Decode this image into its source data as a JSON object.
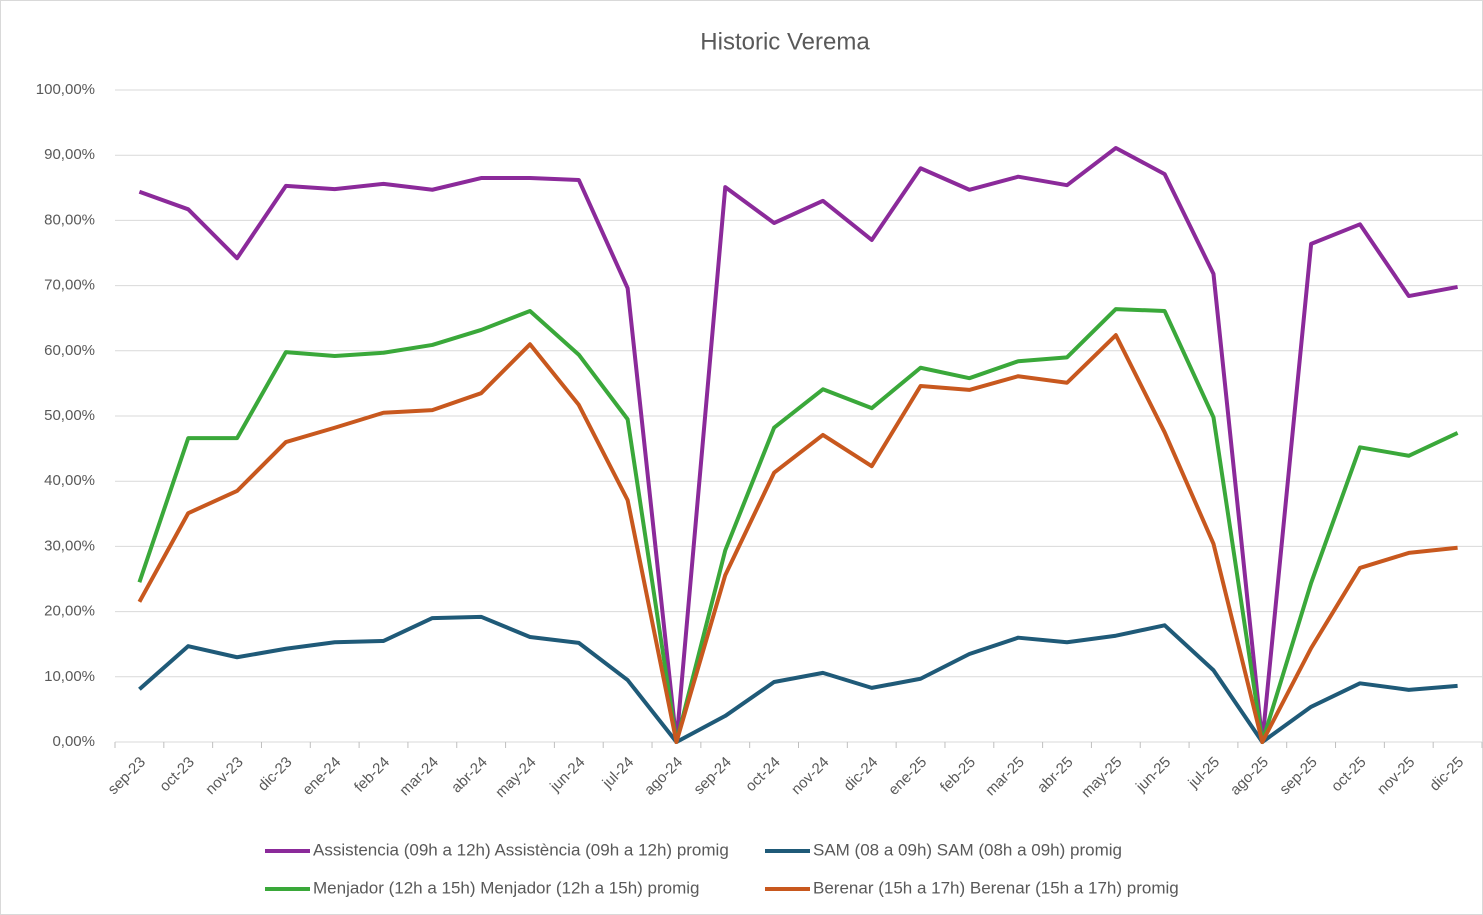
{
  "chart_data": {
    "type": "line",
    "title": "Historic Verema",
    "categories": [
      "sep-23",
      "oct-23",
      "nov-23",
      "dic-23",
      "ene-24",
      "feb-24",
      "mar-24",
      "abr-24",
      "may-24",
      "jun-24",
      "jul-24",
      "ago-24",
      "sep-24",
      "oct-24",
      "nov-24",
      "dic-24",
      "ene-25",
      "feb-25",
      "mar-25",
      "abr-25",
      "may-25",
      "jun-25",
      "jul-25",
      "ago-25",
      "sep-25",
      "oct-25",
      "nov-25",
      "dic-25"
    ],
    "series": [
      {
        "name": "Assistencia (09h a 12h) Assistència (09h a 12h) promig",
        "color": "#8b2a9a",
        "values": [
          84.4,
          81.7,
          74.2,
          85.3,
          84.8,
          85.6,
          84.7,
          86.5,
          86.5,
          86.2,
          69.6,
          0,
          85.1,
          79.6,
          83.0,
          77.0,
          88.0,
          84.7,
          86.7,
          85.4,
          91.1,
          87.1,
          71.8,
          0,
          76.4,
          79.4,
          68.4,
          69.8
        ]
      },
      {
        "name": "SAM (08 a 09h) SAM (08h a 09h) promig",
        "color": "#1f5a78",
        "values": [
          8.1,
          14.7,
          13.0,
          14.3,
          15.3,
          15.5,
          19.0,
          19.2,
          16.1,
          15.2,
          9.5,
          0,
          4.0,
          9.2,
          10.6,
          8.3,
          9.7,
          13.5,
          16.0,
          15.3,
          16.3,
          17.9,
          11.0,
          0,
          5.4,
          9.0,
          8.0,
          8.6
        ]
      },
      {
        "name": "Menjador (12h a 15h) Menjador (12h a 15h) promig",
        "color": "#3aa83a",
        "values": [
          24.5,
          46.6,
          46.6,
          59.8,
          59.2,
          59.7,
          60.9,
          63.2,
          66.1,
          59.4,
          49.5,
          0,
          29.4,
          48.2,
          54.1,
          51.2,
          57.4,
          55.8,
          58.4,
          59.0,
          66.4,
          66.1,
          49.8,
          0,
          24.4,
          45.2,
          43.9,
          47.4
        ]
      },
      {
        "name": "Berenar (15h a 17h) Berenar (15h a 17h) promig",
        "color": "#c8581e",
        "values": [
          21.5,
          35.1,
          38.5,
          46.0,
          48.2,
          50.5,
          50.9,
          53.5,
          61.0,
          51.7,
          37.1,
          0,
          25.6,
          41.3,
          47.1,
          42.3,
          54.6,
          54.0,
          56.1,
          55.1,
          62.4,
          47.5,
          30.4,
          0,
          14.4,
          26.7,
          29.0,
          29.8
        ]
      }
    ],
    "ylim": [
      0,
      100
    ],
    "yticks": [
      {
        "value": 0,
        "label": "0,00%"
      },
      {
        "value": 10,
        "label": "10,00%"
      },
      {
        "value": 20,
        "label": "20,00%"
      },
      {
        "value": 30,
        "label": "30,00%"
      },
      {
        "value": 40,
        "label": "40,00%"
      },
      {
        "value": 50,
        "label": "50,00%"
      },
      {
        "value": 60,
        "label": "60,00%"
      },
      {
        "value": 70,
        "label": "70,00%"
      },
      {
        "value": 80,
        "label": "80,00%"
      },
      {
        "value": 90,
        "label": "90,00%"
      },
      {
        "value": 100,
        "label": "100,00%"
      }
    ],
    "grid": true,
    "legend": "bottom"
  }
}
